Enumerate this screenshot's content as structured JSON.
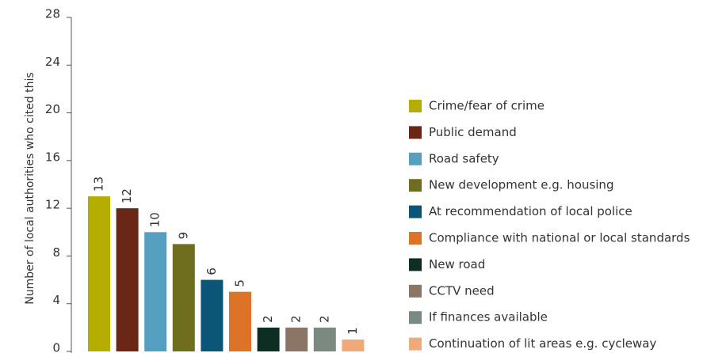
{
  "chart_data": {
    "type": "bar",
    "y_label": "Number of local authorities who cited this",
    "categories": [
      "Crime/fear of crime",
      "Public demand",
      "Road safety",
      "New development e.g. housing",
      "At recommendation of local police",
      "Compliance with national or local standards",
      "New road",
      "CCTV need",
      "If finances available",
      "Continuation of lit areas e.g. cycleway"
    ],
    "values": [
      13,
      12,
      10,
      9,
      6,
      5,
      2,
      2,
      2,
      1
    ],
    "colors": [
      "#b5ad00",
      "#6b2716",
      "#55a0c0",
      "#6e6e1e",
      "#0b5577",
      "#dd7326",
      "#0d2e22",
      "#8a7566",
      "#7b8a80",
      "#eeaa7a"
    ],
    "ylim": [
      0,
      28
    ],
    "yticks": [
      0,
      4,
      8,
      12,
      16,
      20,
      24,
      28
    ],
    "legend": "right"
  }
}
